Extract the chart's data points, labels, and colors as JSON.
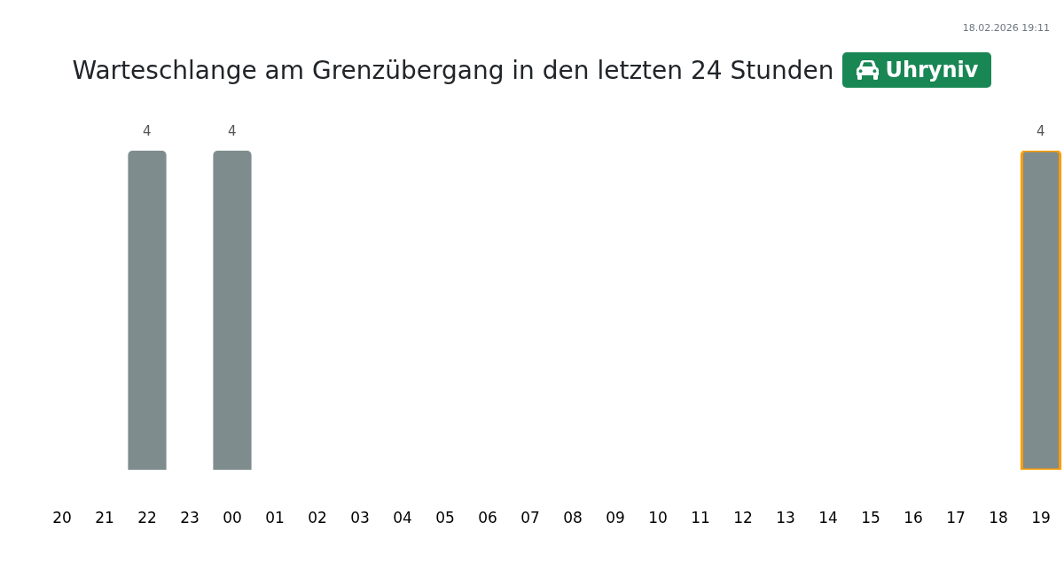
{
  "chart_data": {
    "type": "bar",
    "title": "Warteschlange am Grenzübergang in den letzten 24 Stunden",
    "subtitle": "Uhryniv",
    "annotations": [
      "18.02.2026 19:11"
    ],
    "categories": [
      "20",
      "21",
      "22",
      "23",
      "00",
      "01",
      "02",
      "03",
      "04",
      "05",
      "06",
      "07",
      "08",
      "09",
      "10",
      "11",
      "12",
      "13",
      "14",
      "15",
      "16",
      "17",
      "18",
      "19"
    ],
    "values": [
      0,
      0,
      4,
      0,
      4,
      0,
      0,
      0,
      0,
      0,
      0,
      0,
      0,
      0,
      0,
      0,
      0,
      0,
      0,
      0,
      0,
      0,
      0,
      4
    ],
    "value_labels": [
      null,
      null,
      "4",
      null,
      "4",
      null,
      null,
      null,
      null,
      null,
      null,
      null,
      null,
      null,
      null,
      null,
      null,
      null,
      null,
      null,
      null,
      null,
      null,
      "4"
    ],
    "color": "#7f8c8d"
  }
}
